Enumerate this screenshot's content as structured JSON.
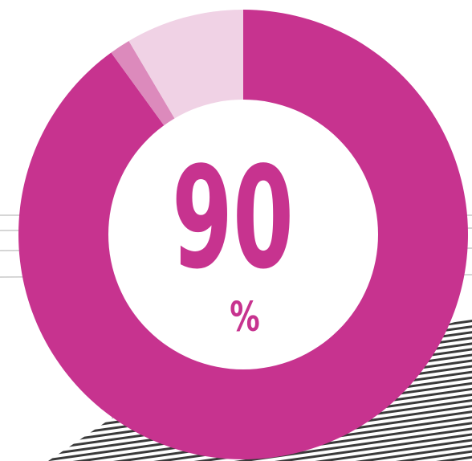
{
  "chart_data": {
    "type": "pie",
    "style": "donut",
    "title": "",
    "center_value": "90",
    "center_unit": "%",
    "slices": [
      {
        "value": 90,
        "color": "#c7338f"
      },
      {
        "value": 1.5,
        "color": "#dc8abc"
      },
      {
        "value": 8.5,
        "color": "#f0d2e5"
      }
    ],
    "start_angle_deg": 0,
    "direction": "clockwise"
  },
  "colors": {
    "accent": "#c7338f",
    "background": "#ffffff"
  }
}
